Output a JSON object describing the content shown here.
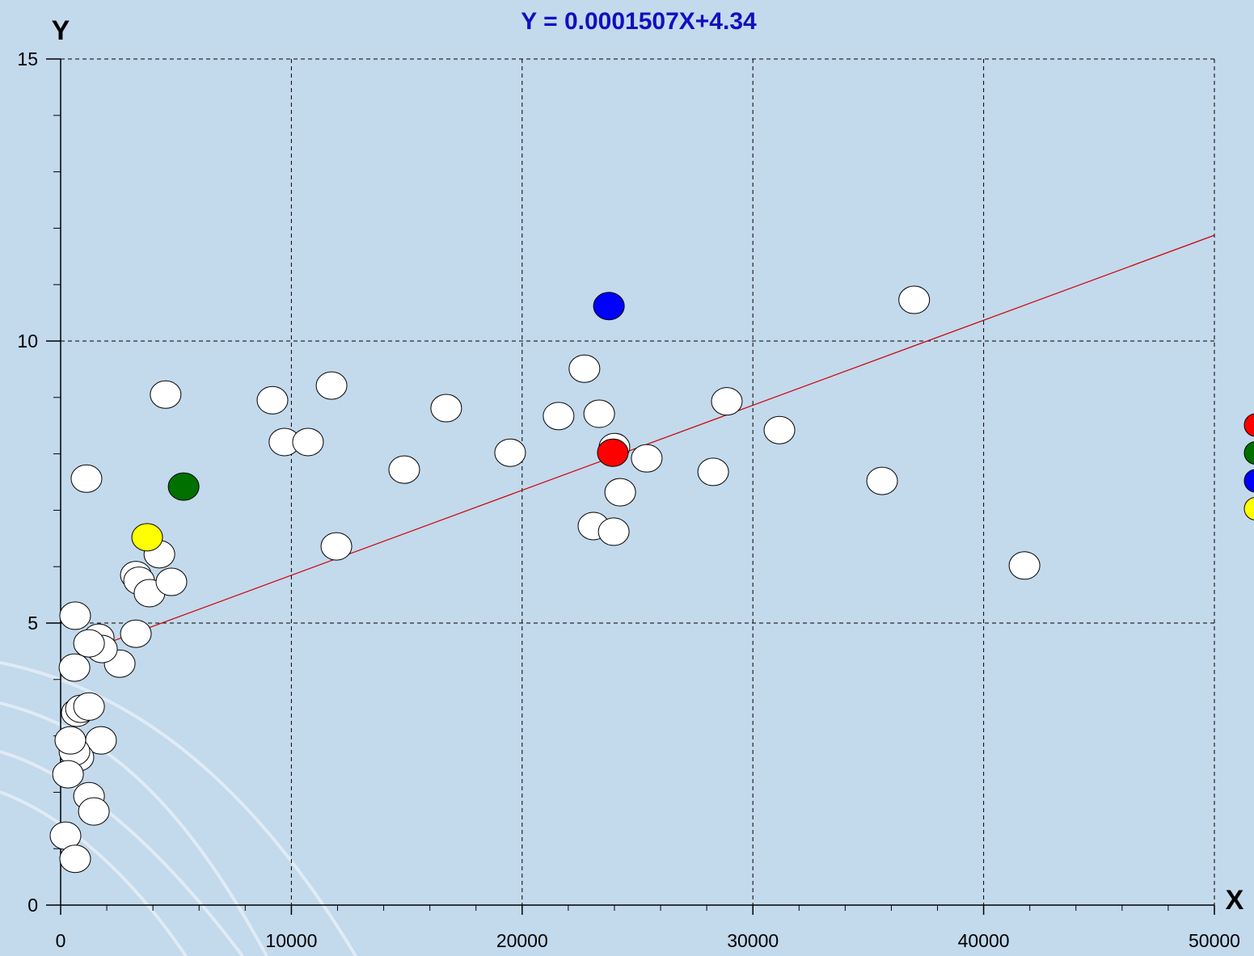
{
  "chart_data": {
    "type": "scatter",
    "title": "Y = 0.0001507X+4.34",
    "x_label": "X",
    "y_label": "Y",
    "xlim": [
      0,
      50000
    ],
    "ylim": [
      0,
      15
    ],
    "xticks": [
      0,
      10000,
      20000,
      30000,
      40000,
      50000
    ],
    "yticks": [
      0,
      5,
      10,
      15
    ],
    "minor_xticks": [
      2000,
      4000,
      6000,
      8000,
      12000,
      14000,
      16000,
      18000,
      22000,
      24000,
      26000,
      28000,
      32000,
      34000,
      36000,
      38000,
      42000,
      44000,
      46000,
      48000
    ],
    "minor_yticks": [
      1,
      2,
      3,
      4,
      6,
      7,
      8,
      9,
      11,
      12,
      13,
      14
    ],
    "grid": true,
    "trendline": {
      "slope": 0.0001507,
      "intercept": 4.34,
      "color": "#cc0000"
    },
    "series": [
      {
        "color": "#ffffff",
        "in_legend": false,
        "x": [
          4550,
          1120,
          9180,
          9700,
          10720,
          11740,
          11950,
          14890,
          16710,
          19480,
          21580,
          22700,
          23340,
          24000,
          24250,
          25400,
          23090,
          23970,
          28280,
          28870,
          31150,
          35600,
          36990,
          41770,
          3260,
          3400,
          3850,
          4280,
          4800,
          3260,
          2560,
          630,
          1650,
          1790,
          1230,
          600,
          700,
          880,
          1230,
          1750,
          770,
          600,
          420,
          320,
          1230,
          1440,
          210,
          630
        ],
        "values": [
          9.05,
          7.56,
          8.95,
          8.21,
          8.21,
          9.21,
          6.36,
          7.72,
          8.81,
          8.02,
          8.67,
          9.51,
          8.71,
          8.12,
          7.32,
          7.92,
          6.72,
          6.62,
          7.68,
          8.93,
          8.42,
          7.52,
          10.73,
          6.02,
          5.85,
          5.75,
          5.53,
          6.22,
          5.73,
          4.81,
          4.28,
          5.13,
          4.74,
          4.54,
          4.64,
          4.21,
          3.41,
          3.48,
          3.52,
          2.92,
          2.62,
          2.72,
          2.92,
          2.32,
          1.93,
          1.66,
          1.23,
          0.82
        ]
      },
      {
        "color": "#ff0000",
        "in_legend": true,
        "x": [
          23930
        ],
        "values": [
          8.02
        ]
      },
      {
        "color": "#007000",
        "in_legend": true,
        "x": [
          5330
        ],
        "values": [
          7.42
        ]
      },
      {
        "color": "#0000ff",
        "in_legend": true,
        "x": [
          23760
        ],
        "values": [
          10.62
        ]
      },
      {
        "color": "#ffff00",
        "in_legend": true,
        "x": [
          3750
        ],
        "values": [
          6.52
        ]
      }
    ]
  }
}
